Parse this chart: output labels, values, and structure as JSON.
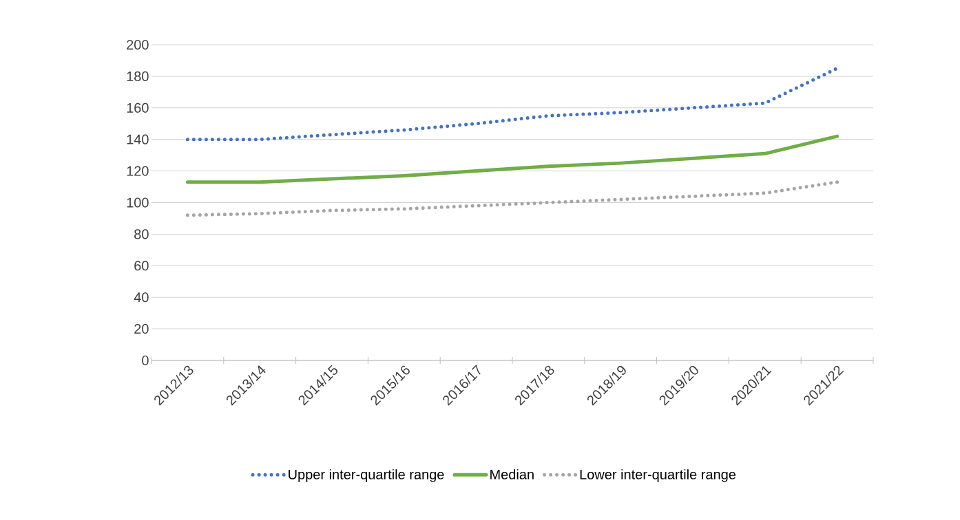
{
  "chart_data": {
    "type": "line",
    "categories": [
      "2012/13",
      "2013/14",
      "2014/15",
      "2015/16",
      "2016/17",
      "2017/18",
      "2018/19",
      "2019/20",
      "2020/21",
      "2021/22"
    ],
    "series": [
      {
        "name": "Upper inter-quartile range",
        "color": "#4472c4",
        "line_style": "dotted",
        "values": [
          140,
          140,
          143,
          146,
          150,
          155,
          157,
          160,
          163,
          185
        ]
      },
      {
        "name": "Median",
        "color": "#70ad47",
        "line_style": "solid",
        "values": [
          113,
          113,
          115,
          117,
          120,
          123,
          125,
          128,
          131,
          142
        ]
      },
      {
        "name": "Lower inter-quartile range",
        "color": "#a5a5a5",
        "line_style": "dotted",
        "values": [
          92,
          93,
          95,
          96,
          98,
          100,
          102,
          104,
          106,
          113
        ]
      }
    ],
    "ylim": [
      0,
      200
    ],
    "yticks": [
      0,
      20,
      40,
      60,
      80,
      100,
      120,
      140,
      160,
      180,
      200
    ],
    "grid": "y",
    "legend": "bottom",
    "marker": "none"
  }
}
